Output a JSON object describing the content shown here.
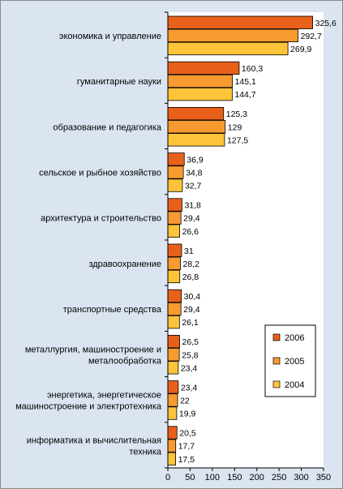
{
  "chart_data": {
    "type": "bar",
    "orientation": "horizontal",
    "categories": [
      [
        "экономика и управление"
      ],
      [
        "гуманитарные науки"
      ],
      [
        "образование и педагогика"
      ],
      [
        "сельское и рыбное хозяйство"
      ],
      [
        "архитектура и строительство"
      ],
      [
        "здравоохранение"
      ],
      [
        "транспортные средства"
      ],
      [
        "металлургия, машиностроение и",
        "металообработка"
      ],
      [
        "энергетика, энергетическое",
        "машиностроение и электротехника"
      ],
      [
        "информатика и вычислительная",
        "техника"
      ]
    ],
    "series": [
      {
        "name": "2006",
        "color": "#e8601a",
        "values": [
          325.6,
          160.3,
          125.3,
          36.9,
          31.8,
          31,
          30.4,
          26.5,
          23.4,
          20.5
        ]
      },
      {
        "name": "2005",
        "color": "#f79a30",
        "values": [
          292.7,
          145.1,
          129,
          34.8,
          29.4,
          28.2,
          29.4,
          25.8,
          22,
          17.7
        ]
      },
      {
        "name": "2004",
        "color": "#fdc43a",
        "values": [
          269.9,
          144.7,
          127.5,
          32.7,
          26.6,
          26.8,
          26.1,
          23.4,
          19.9,
          17.5
        ]
      }
    ],
    "value_labels": [
      [
        "325,6",
        "292,7",
        "269,9"
      ],
      [
        "160,3",
        "145,1",
        "144,7"
      ],
      [
        "125,3",
        "129",
        "127,5"
      ],
      [
        "36,9",
        "34,8",
        "32,7"
      ],
      [
        "31,8",
        "29,4",
        "26,6"
      ],
      [
        "31",
        "28,2",
        "26,8"
      ],
      [
        "30,4",
        "29,4",
        "26,1"
      ],
      [
        "26,5",
        "25,8",
        "23,4"
      ],
      [
        "23,4",
        "22",
        "19,9"
      ],
      [
        "20,5",
        "17,7",
        "17,5"
      ]
    ],
    "xlim": [
      0,
      350
    ],
    "xticks": [
      0,
      50,
      100,
      150,
      200,
      250,
      300,
      350
    ],
    "legend_placement": "right",
    "grid": false,
    "background_color": "#dbe5f1",
    "plot_background": "#ffffff"
  }
}
